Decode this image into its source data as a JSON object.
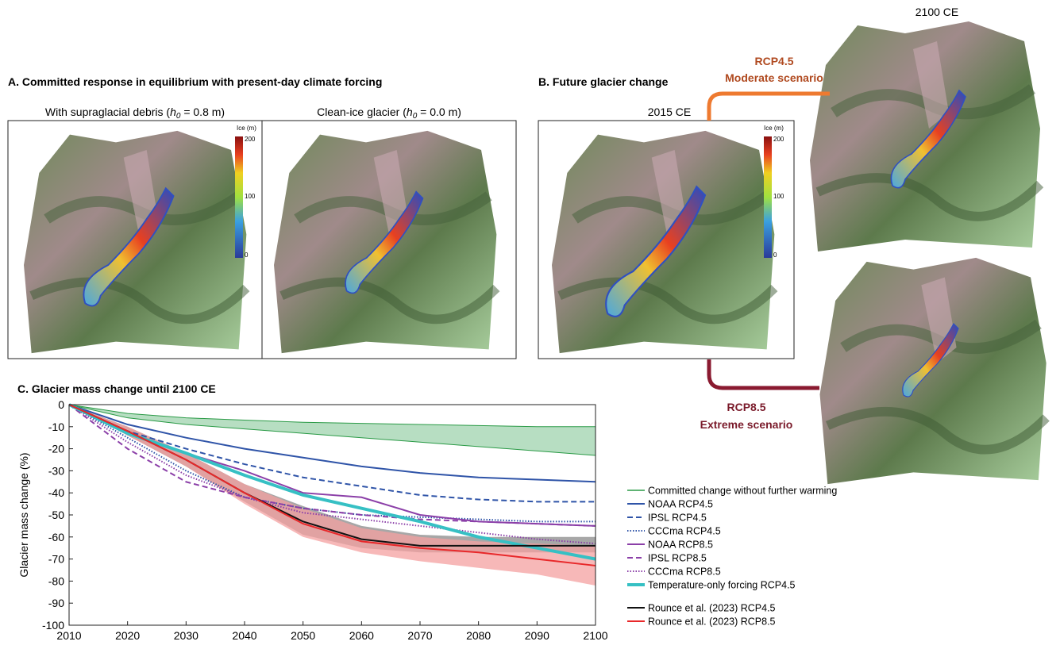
{
  "panel_a": {
    "title": "A. Committed response in equilibrium with present-day climate forcing",
    "left_label": {
      "before": "With supraglacial debris (",
      "var": "h",
      "sub": "0",
      "after": " = 0.8 m)"
    },
    "right_label": {
      "before": "Clean-ice glacier (",
      "var": "h",
      "sub": "0",
      "after": " = 0.0 m)"
    },
    "colorbar": {
      "title": "Ice (m)",
      "top": "200",
      "mid": "100",
      "bottom": "0"
    }
  },
  "panel_b": {
    "title": "B. Future glacier change",
    "start_label": "2015 CE",
    "end_label": "2100 CE",
    "colorbar": {
      "title": "Ice (m)",
      "top": "200",
      "mid": "100",
      "bottom": "0"
    },
    "moderate": {
      "name": "RCP4.5",
      "desc": "Moderate scenario"
    },
    "extreme": {
      "name": "RCP8.5",
      "desc": "Extreme scenario"
    }
  },
  "chart_data": {
    "type": "line",
    "title": "C. Glacier mass change until 2100 CE",
    "ylabel": "Glacier mass change (%)",
    "x": [
      2010,
      2020,
      2030,
      2040,
      2050,
      2060,
      2070,
      2080,
      2090,
      2100
    ],
    "xlim": [
      2010,
      2100
    ],
    "xticks": [
      2010,
      2020,
      2030,
      2040,
      2050,
      2060,
      2070,
      2080,
      2090,
      2100
    ],
    "ylim": [
      -100,
      0
    ],
    "yticks": [
      -100,
      -90,
      -80,
      -70,
      -60,
      -50,
      -40,
      -30,
      -20,
      -10,
      0
    ],
    "legend": "right",
    "series": [
      {
        "name": "Committed change without further warming",
        "color": "#2a9a46",
        "band_color": "#9fd3ad",
        "style": "solid",
        "linewidth": 1,
        "upper": [
          0,
          -4,
          -6,
          -7,
          -8,
          -8.5,
          -9,
          -9.5,
          -10,
          -10
        ],
        "lower": [
          0,
          -6,
          -9,
          -11,
          -13,
          -15,
          -17,
          -19,
          -21,
          -23
        ]
      },
      {
        "name": "NOAA RCP4.5",
        "color": "#2f54a8",
        "style": "solid",
        "linewidth": 2,
        "values": [
          0,
          -9,
          -15,
          -20,
          -24,
          -28,
          -31,
          -33,
          -34,
          -35
        ]
      },
      {
        "name": "IPSL RCP4.5",
        "color": "#2f54a8",
        "style": "dashed",
        "linewidth": 2,
        "values": [
          0,
          -12,
          -20,
          -27,
          -33,
          -37,
          -41,
          -43,
          -44,
          -44
        ]
      },
      {
        "name": "CCCma RCP4.5",
        "color": "#2f54a8",
        "style": "dotted",
        "linewidth": 2,
        "values": [
          0,
          -15,
          -30,
          -42,
          -47,
          -50,
          -51,
          -52,
          -53,
          -53
        ]
      },
      {
        "name": "NOAA RCP8.5",
        "color": "#8b3fa8",
        "style": "solid",
        "linewidth": 2,
        "values": [
          0,
          -13,
          -22,
          -30,
          -40,
          -42,
          -50,
          -53,
          -54,
          -55
        ]
      },
      {
        "name": "IPSL RCP8.5",
        "color": "#8b3fa8",
        "style": "dashed",
        "linewidth": 2,
        "values": [
          0,
          -20,
          -35,
          -42,
          -47,
          -50,
          -52,
          -53,
          -54,
          -55
        ]
      },
      {
        "name": "CCCma RCP8.5",
        "color": "#8b3fa8",
        "style": "dotted",
        "linewidth": 2,
        "values": [
          0,
          -17,
          -32,
          -42,
          -49,
          -52,
          -55,
          -58,
          -61,
          -63
        ]
      },
      {
        "name": "Temperature-only forcing RCP4.5",
        "color": "#36c0c4",
        "style": "solid",
        "linewidth": 4,
        "values": [
          0,
          -13,
          -22,
          -32,
          -41,
          -47,
          -53,
          -60,
          -65,
          -70
        ]
      },
      {
        "name": "Rounce et al. (2023) RCP4.5",
        "color": "#111111",
        "band_color": "#8a8a8a",
        "style": "solid",
        "linewidth": 2,
        "values": [
          0,
          -12,
          -25,
          -40,
          -53,
          -61,
          -64,
          -64,
          -64,
          -64
        ],
        "upper": [
          0,
          -10,
          -22,
          -36,
          -46,
          -55,
          -59,
          -60,
          -60,
          -60
        ],
        "lower": [
          0,
          -14,
          -28,
          -44,
          -59,
          -65,
          -67,
          -67,
          -67,
          -67
        ]
      },
      {
        "name": "Rounce et al. (2023) RCP8.5",
        "color": "#e8282a",
        "band_color": "#f4a0a0",
        "style": "solid",
        "linewidth": 2,
        "values": [
          0,
          -12,
          -25,
          -40,
          -54,
          -62,
          -65,
          -67,
          -70,
          -73
        ],
        "upper": [
          0,
          -10,
          -22,
          -36,
          -47,
          -56,
          -60,
          -62,
          -63,
          -64
        ],
        "lower": [
          0,
          -14,
          -28,
          -45,
          -60,
          -67,
          -71,
          -74,
          -77,
          -82
        ]
      }
    ]
  }
}
